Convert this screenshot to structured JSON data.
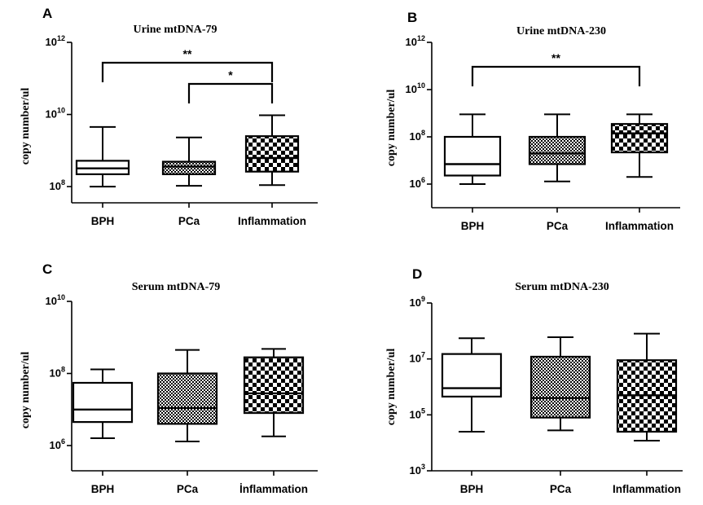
{
  "chart_data": [
    {
      "type": "box",
      "panel": "A",
      "title": "Urine mtDNA-79",
      "ylabel": "copy number/ul",
      "yscale": "log10",
      "ylim_exp": [
        7.55,
        12
      ],
      "ytick_exps": [
        8,
        10,
        12
      ],
      "categories": [
        "BPH",
        "PCa",
        "Inflammation"
      ],
      "boxes": [
        {
          "category": "BPH",
          "fill": "white",
          "whisker_low": 100000000.0,
          "q1": 220000000.0,
          "median": 320000000.0,
          "q3": 520000000.0,
          "whisker_high": 4500000000.0
        },
        {
          "category": "PCa",
          "fill": "fine-check",
          "whisker_low": 105000000.0,
          "q1": 220000000.0,
          "median": 360000000.0,
          "q3": 490000000.0,
          "whisker_high": 2300000000.0
        },
        {
          "category": "Inflammation",
          "fill": "coarse-check",
          "whisker_low": 110000000.0,
          "q1": 260000000.0,
          "median": 620000000.0,
          "q3": 2500000000.0,
          "whisker_high": 9500000000.0
        }
      ],
      "significance": [
        {
          "from": "BPH",
          "to": "Inflammation",
          "label": "**"
        },
        {
          "from": "PCa",
          "to": "Inflammation",
          "label": "*"
        }
      ]
    },
    {
      "type": "box",
      "panel": "B",
      "title": "Urine mtDNA-230",
      "ylabel": "copy number/ul",
      "yscale": "log10",
      "ylim_exp": [
        5,
        12
      ],
      "ytick_exps": [
        6,
        8,
        10,
        12
      ],
      "categories": [
        "BPH",
        "PCa",
        "Inflammation"
      ],
      "boxes": [
        {
          "category": "BPH",
          "fill": "white",
          "whisker_low": 1000000.0,
          "q1": 2300000.0,
          "median": 7000000.0,
          "q3": 100000000.0,
          "whisker_high": 900000000.0
        },
        {
          "category": "PCa",
          "fill": "fine-check",
          "whisker_low": 1300000.0,
          "q1": 7000000.0,
          "median": 20000000.0,
          "q3": 100000000.0,
          "whisker_high": 900000000.0
        },
        {
          "category": "Inflammation",
          "fill": "coarse-check",
          "whisker_low": 2000000.0,
          "q1": 22000000.0,
          "median": 140000000.0,
          "q3": 350000000.0,
          "whisker_high": 900000000.0
        }
      ],
      "significance": [
        {
          "from": "BPH",
          "to": "Inflammation",
          "label": "**"
        }
      ]
    },
    {
      "type": "box",
      "panel": "C",
      "title": "Serum mtDNA-79",
      "ylabel": "copy number/ul",
      "yscale": "log10",
      "ylim_exp": [
        5.3,
        10
      ],
      "ytick_exps": [
        6,
        8,
        10
      ],
      "categories": [
        "BPH",
        "PCa",
        "İnflammation"
      ],
      "boxes": [
        {
          "category": "BPH",
          "fill": "white",
          "whisker_low": 1600000.0,
          "q1": 4500000.0,
          "median": 10000000.0,
          "q3": 55000000.0,
          "whisker_high": 130000000.0
        },
        {
          "category": "PCa",
          "fill": "fine-check",
          "whisker_low": 1300000.0,
          "q1": 4000000.0,
          "median": 11000000.0,
          "q3": 100000000.0,
          "whisker_high": 450000000.0
        },
        {
          "category": "İnflammation",
          "fill": "coarse-check",
          "whisker_low": 1800000.0,
          "q1": 8000000.0,
          "median": 28000000.0,
          "q3": 280000000.0,
          "whisker_high": 480000000.0
        }
      ],
      "significance": []
    },
    {
      "type": "box",
      "panel": "D",
      "title": "Serum mtDNA-230",
      "ylabel": "copy number/ul",
      "yscale": "log10",
      "ylim_exp": [
        3,
        9
      ],
      "ytick_exps": [
        3,
        5,
        7,
        9
      ],
      "categories": [
        "BPH",
        "PCa",
        "Inflammation"
      ],
      "boxes": [
        {
          "category": "BPH",
          "fill": "white",
          "whisker_low": 25000.0,
          "q1": 450000.0,
          "median": 900000.0,
          "q3": 15000000.0,
          "whisker_high": 55000000.0
        },
        {
          "category": "PCa",
          "fill": "fine-check",
          "whisker_low": 28000.0,
          "q1": 80000.0,
          "median": 400000.0,
          "q3": 12000000.0,
          "whisker_high": 60000000.0
        },
        {
          "category": "Inflammation",
          "fill": "coarse-check",
          "whisker_low": 12000.0,
          "q1": 25000.0,
          "median": 500000.0,
          "q3": 9000000.0,
          "whisker_high": 80000000.0
        }
      ],
      "significance": []
    }
  ]
}
